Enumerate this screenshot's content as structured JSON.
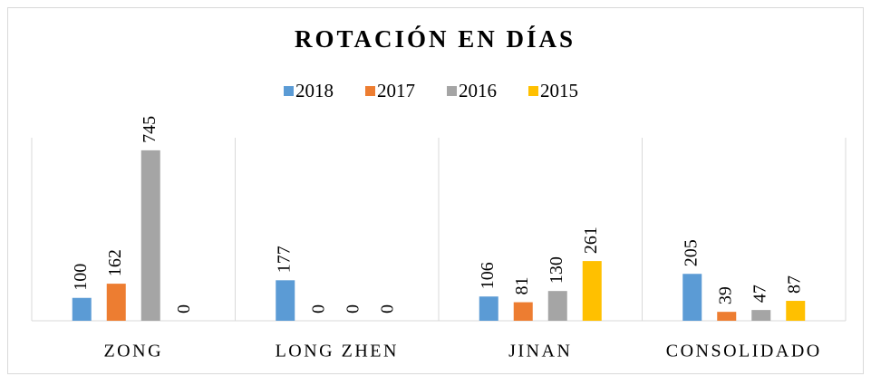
{
  "chart_data": {
    "type": "bar",
    "title": "ROTACIÓN EN DÍAS",
    "categories": [
      "ZONG",
      "LONG ZHEN",
      "JINAN",
      "CONSOLIDADO"
    ],
    "series": [
      {
        "name": "2018",
        "color": "#5b9bd5",
        "values": [
          100,
          177,
          106,
          205
        ]
      },
      {
        "name": "2017",
        "color": "#ed7d31",
        "values": [
          162,
          0,
          81,
          39
        ]
      },
      {
        "name": "2016",
        "color": "#a5a5a5",
        "values": [
          745,
          0,
          130,
          47
        ]
      },
      {
        "name": "2015",
        "color": "#ffc000",
        "values": [
          0,
          0,
          261,
          87
        ]
      }
    ],
    "ylim": [
      0,
      800
    ],
    "grid": false,
    "legend": "top"
  }
}
